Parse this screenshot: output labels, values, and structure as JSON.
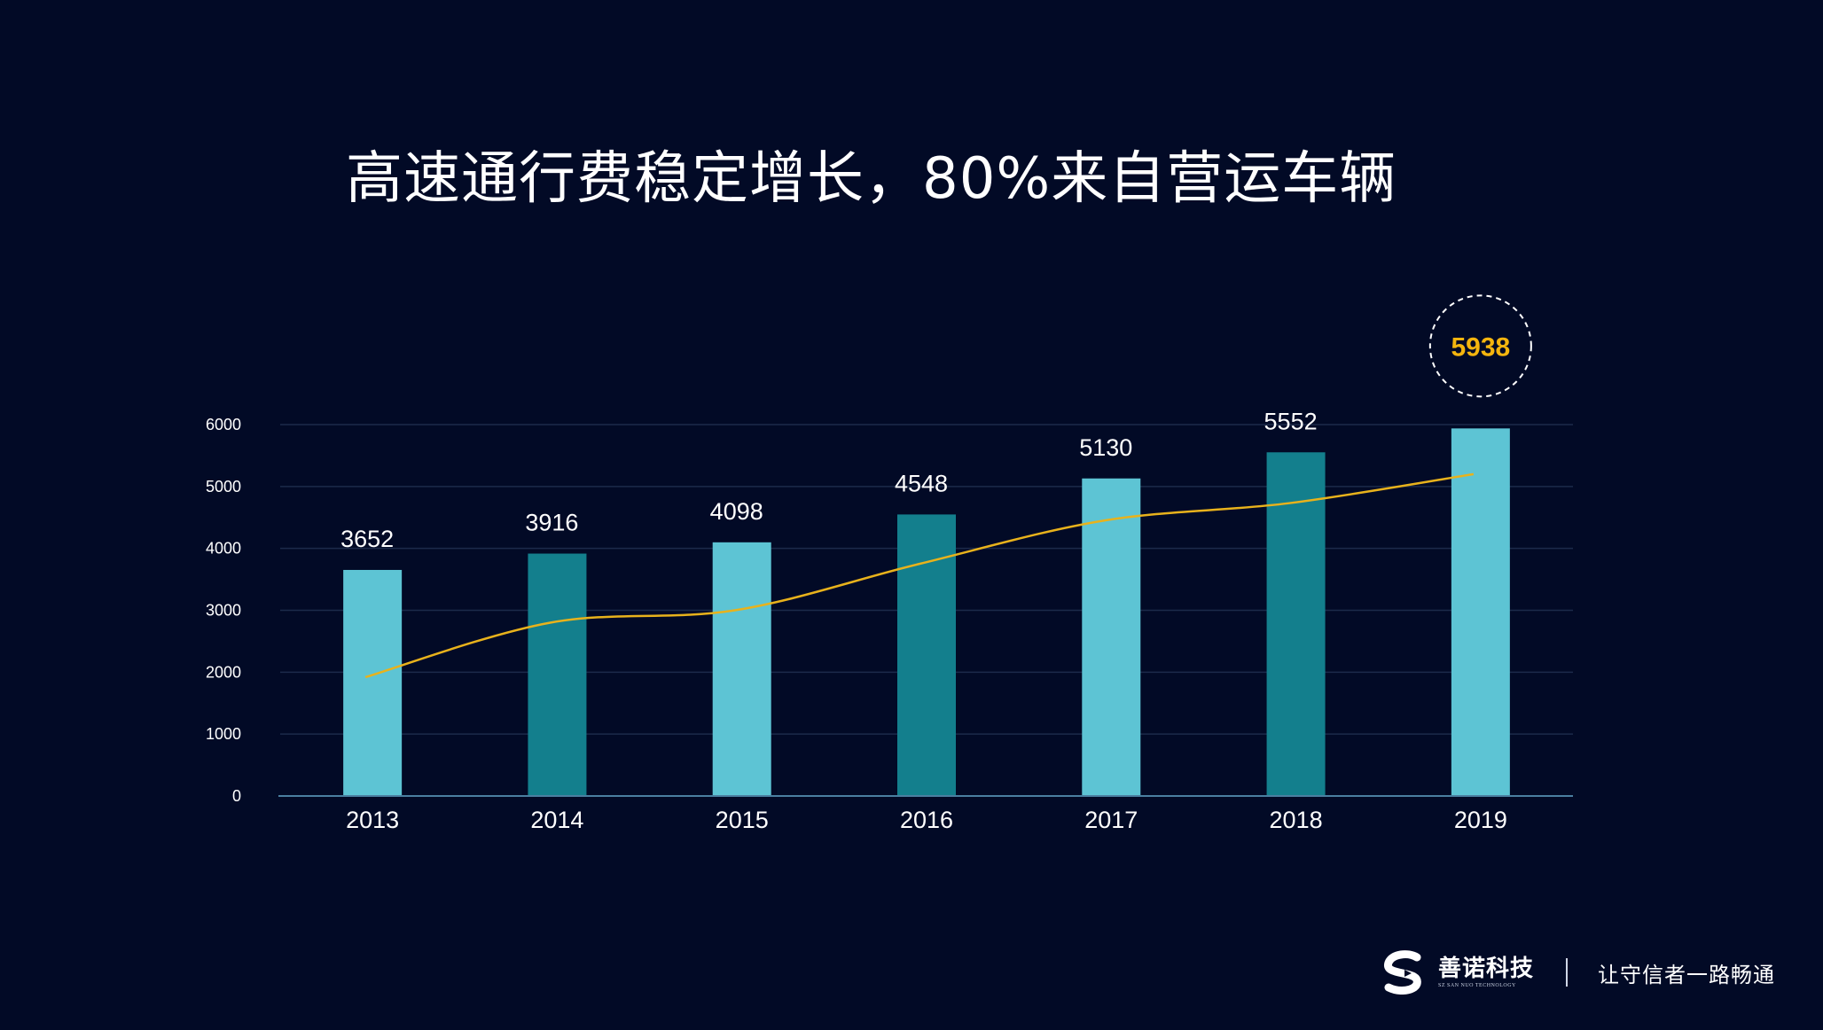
{
  "title": "高速通行费稳定增长，80%来自营运车辆",
  "chart_data": {
    "type": "bar",
    "categories": [
      "2013",
      "2014",
      "2015",
      "2016",
      "2017",
      "2018",
      "2019"
    ],
    "values": [
      3652,
      3916,
      4098,
      4548,
      5130,
      5552,
      5938
    ],
    "data_labels": [
      "3652",
      "3916",
      "4098",
      "4548",
      "5130",
      "5552",
      "5938"
    ],
    "trend_line": [
      1920,
      2800,
      3000,
      3750,
      4450,
      4730,
      5200
    ],
    "y_ticks": [
      "0",
      "1000",
      "2000",
      "3000",
      "4000",
      "5000",
      "6000"
    ],
    "ylim": [
      0,
      6000
    ],
    "grid": true,
    "highlight": "5938",
    "colors": {
      "bar_light": "#5dc4d4",
      "bar_dark": "#137f8d",
      "trend_line": "#e8b21c",
      "highlight_text": "#f5b50e",
      "grid": "#1c2a4a",
      "axis": "#4a7fa0"
    }
  },
  "footer": {
    "logo_text": "善诺科技",
    "logo_sub": "SZ SAN NUO TECHNOLOGY",
    "slogan": "让守信者一路畅通"
  }
}
